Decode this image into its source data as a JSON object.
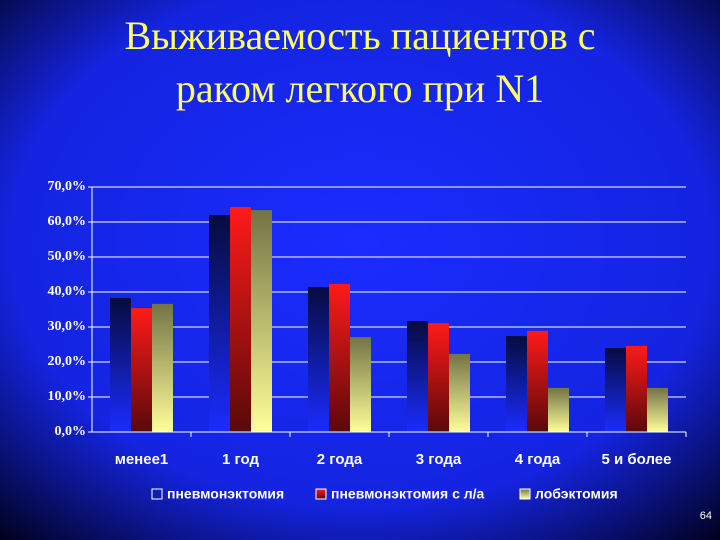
{
  "chart_data": {
    "type": "bar",
    "title": "Выживаемость пациентов с раком легкого при N1",
    "title_lines": [
      "Выживаемость пациентов с",
      "раком легкого при N1"
    ],
    "categories": [
      "менее1",
      "1 год",
      "2 года",
      "3 года",
      "4 года",
      "5 и более"
    ],
    "series": [
      {
        "name": "пневмонэктомия",
        "color": "#1a2cff",
        "values": [
          38.3,
          62,
          41.4,
          31.7,
          27.4,
          24
        ]
      },
      {
        "name": "пневмонэктомия с л/а",
        "color": "#ff1a1a",
        "values": [
          35.4,
          64.3,
          42.3,
          31.1,
          28.9,
          24.6
        ]
      },
      {
        "name": "лобэктомия",
        "color": "#ffff99",
        "values": [
          36.6,
          63.4,
          27.1,
          22.3,
          12.6,
          12.6
        ]
      }
    ],
    "ylim": [
      0,
      70
    ],
    "yticks": [
      {
        "value": 0,
        "label": "0,0%"
      },
      {
        "value": 10,
        "label": "10,0%"
      },
      {
        "value": 20,
        "label": "20,0%"
      },
      {
        "value": 30,
        "label": "30,0%"
      },
      {
        "value": 40,
        "label": "40,0%"
      },
      {
        "value": 50,
        "label": "50,0%"
      },
      {
        "value": 60,
        "label": "60,0%"
      },
      {
        "value": 70,
        "label": "70,0%"
      }
    ],
    "grid": true,
    "legend": "bottom",
    "page_number": "64"
  }
}
